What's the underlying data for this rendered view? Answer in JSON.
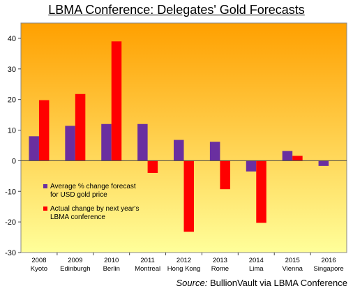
{
  "chart_data": {
    "type": "bar",
    "title": "LBMA Conference:  Delegates' Gold Forecasts",
    "xlabel": "",
    "ylabel": "",
    "categories": [
      {
        "year": "2008",
        "city": "Kyoto"
      },
      {
        "year": "2009",
        "city": "Edinburgh"
      },
      {
        "year": "2010",
        "city": "Berlin"
      },
      {
        "year": "2011",
        "city": "Montreal"
      },
      {
        "year": "2012",
        "city": "Hong Kong"
      },
      {
        "year": "2013",
        "city": "Rome"
      },
      {
        "year": "2014",
        "city": "Lima"
      },
      {
        "year": "2015",
        "city": "Vienna"
      },
      {
        "year": "2016",
        "city": "Singapore"
      }
    ],
    "series": [
      {
        "name": "Average % change forecast for USD gold price",
        "legend_lines": [
          "Average % change forecast",
          "for USD gold price"
        ],
        "color": "#6a2fa0",
        "values": [
          8,
          11.4,
          12,
          12,
          6.8,
          6.2,
          -3.5,
          3.2,
          -1.7
        ]
      },
      {
        "name": "Actual change by next year's LBMA conference",
        "legend_lines": [
          "Actual change by next year's",
          "LBMA conference"
        ],
        "color": "#ff0000",
        "values": [
          19.8,
          21.8,
          39,
          -4,
          -23.2,
          -9.3,
          -20.3,
          1.6,
          null
        ]
      }
    ],
    "ylim": [
      -30,
      45
    ],
    "yticks": [
      -30,
      -20,
      -10,
      0,
      10,
      20,
      30,
      40
    ],
    "grid": false,
    "legend_position": "bottom-left",
    "background_gradient": [
      "#ffa000",
      "#ffff9a"
    ],
    "source": {
      "label": "Source:",
      "text": "BullionVault via LBMA Conference"
    }
  }
}
